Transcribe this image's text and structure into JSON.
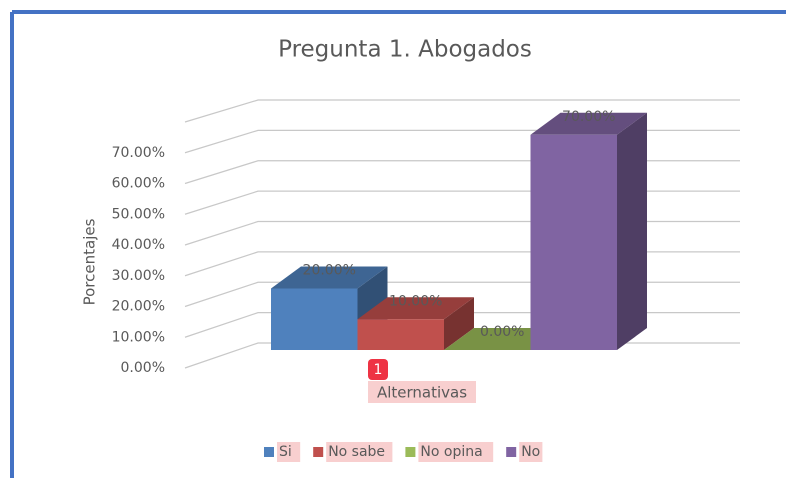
{
  "chart_data": {
    "type": "bar",
    "title": "Pregunta 1. Abogados",
    "y_label": "Porcentajes",
    "x_label": "Alternativas",
    "categories": [
      "1"
    ],
    "series": [
      {
        "name": "Si",
        "color": "#4f81bd",
        "values": [
          20
        ],
        "value_labels": [
          "20.00%"
        ]
      },
      {
        "name": "No sabe",
        "color": "#c0504d",
        "values": [
          10
        ],
        "value_labels": [
          "10.00%"
        ]
      },
      {
        "name": "No opina",
        "color": "#9bbb59",
        "values": [
          0
        ],
        "value_labels": [
          "0.00%"
        ]
      },
      {
        "name": "No",
        "color": "#8064a2",
        "values": [
          70
        ],
        "value_labels": [
          "70.00%"
        ]
      }
    ],
    "ylim": [
      0,
      80
    ],
    "yticks": [
      {
        "value": 0,
        "label": "0.00%"
      },
      {
        "value": 10,
        "label": "10.00%"
      },
      {
        "value": 20,
        "label": "20.00%"
      },
      {
        "value": 30,
        "label": "30.00%"
      },
      {
        "value": 40,
        "label": "40.00%"
      },
      {
        "value": 50,
        "label": "50.00%"
      },
      {
        "value": 60,
        "label": "60.00%"
      },
      {
        "value": 70,
        "label": "70.00%"
      }
    ],
    "grid": true,
    "legend": "bottom"
  }
}
